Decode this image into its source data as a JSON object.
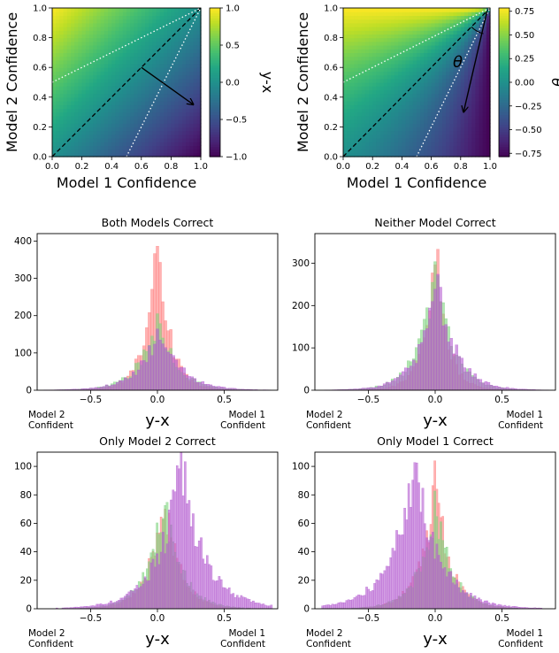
{
  "chart_data": [
    {
      "type": "heatmap",
      "colormap": "viridis",
      "function": "y-x",
      "xlabel": "Model 1 Confidence",
      "ylabel": "Model 2 Confidence",
      "xlim": [
        0,
        1
      ],
      "ylim": [
        0,
        1
      ],
      "xticks": [
        "0.0",
        "0.2",
        "0.4",
        "0.6",
        "0.8",
        "1.0"
      ],
      "yticks": [
        "0.0",
        "0.2",
        "0.4",
        "0.6",
        "0.8",
        "1.0"
      ],
      "colorbar": {
        "label": "y-x",
        "range": [
          -1,
          1
        ],
        "ticks": [
          "1.0",
          "0.5",
          "0.0",
          "−0.5",
          "−1.0"
        ]
      },
      "lines": [
        {
          "style": "dashed",
          "x": [
            0,
            1
          ],
          "y": [
            0,
            1
          ]
        },
        {
          "style": "dotted",
          "x": [
            0,
            1
          ],
          "y": [
            0.5,
            1
          ]
        },
        {
          "style": "dotted",
          "x": [
            0.5,
            1
          ],
          "y": [
            0,
            1
          ]
        }
      ],
      "arrow": {
        "from": [
          0.6,
          0.6
        ],
        "to": [
          0.95,
          0.35
        ]
      }
    },
    {
      "type": "heatmap",
      "colormap": "viridis",
      "function": "angle",
      "xlabel": "Model 1 Confidence",
      "ylabel": "Model 2 Confidence",
      "xlim": [
        0,
        1
      ],
      "ylim": [
        0,
        1
      ],
      "xticks": [
        "0.0",
        "0.2",
        "0.4",
        "0.6",
        "0.8",
        "1.0"
      ],
      "yticks": [
        "0.0",
        "0.2",
        "0.4",
        "0.6",
        "0.8",
        "1.0"
      ],
      "colorbar": {
        "label": "θ",
        "range": [
          -0.785,
          0.785
        ],
        "ticks": [
          "0.75",
          "0.50",
          "0.25",
          "0.00",
          "−0.25",
          "−0.50",
          "−0.75"
        ]
      },
      "lines": [
        {
          "style": "dashed",
          "x": [
            0,
            1
          ],
          "y": [
            0,
            1
          ]
        },
        {
          "style": "dotted",
          "x": [
            0,
            1
          ],
          "y": [
            0.5,
            1
          ]
        },
        {
          "style": "dotted",
          "x": [
            0.5,
            1
          ],
          "y": [
            0,
            1
          ]
        }
      ],
      "arrow": {
        "from": [
          0.98,
          0.98
        ],
        "to": [
          0.82,
          0.3
        ]
      },
      "annotation": "θ"
    },
    {
      "type": "histogram",
      "title": "Both Models Correct",
      "xlabel": "y-x",
      "xlim": [
        -0.9,
        0.9
      ],
      "ylim": [
        0,
        420
      ],
      "xticks": [
        "−0.5",
        "0.0",
        "0.5"
      ],
      "yticks": [
        "0",
        "100",
        "200",
        "300",
        "400"
      ],
      "side_labels": {
        "left": [
          "Model 2",
          "Confident"
        ],
        "right": [
          "Model 1",
          "Confident"
        ]
      },
      "bin_width": 0.02,
      "series": [
        {
          "color": "#ff7f7f",
          "peak_x": 0.0,
          "peak_y": 400,
          "spread": 0.15
        },
        {
          "color": "#7fd37f",
          "peak_x": 0.0,
          "peak_y": 195,
          "spread": 0.22
        },
        {
          "color": "#b45cd0",
          "peak_x": 0.02,
          "peak_y": 170,
          "spread": 0.24
        }
      ]
    },
    {
      "type": "histogram",
      "title": "Neither Model Correct",
      "xlabel": "y-x",
      "xlim": [
        -0.9,
        0.9
      ],
      "ylim": [
        0,
        370
      ],
      "xticks": [
        "−0.5",
        "0.0",
        "0.5"
      ],
      "yticks": [
        "0",
        "100",
        "200",
        "300"
      ],
      "side_labels": {
        "left": [
          "Model 2",
          "Confident"
        ],
        "right": [
          "Model 1",
          "Confident"
        ]
      },
      "bin_width": 0.02,
      "series": [
        {
          "color": "#ff7f7f",
          "peak_x": 0.0,
          "peak_y": 345,
          "spread": 0.14
        },
        {
          "color": "#7fd37f",
          "peak_x": 0.0,
          "peak_y": 285,
          "spread": 0.2
        },
        {
          "color": "#b45cd0",
          "peak_x": 0.02,
          "peak_y": 250,
          "spread": 0.22
        }
      ]
    },
    {
      "type": "histogram",
      "title": "Only Model 2 Correct",
      "xlabel": "y-x",
      "xlim": [
        -0.9,
        0.9
      ],
      "ylim": [
        0,
        110
      ],
      "xticks": [
        "−0.5",
        "0.0",
        "0.5"
      ],
      "yticks": [
        "0",
        "20",
        "40",
        "60",
        "80",
        "100"
      ],
      "side_labels": {
        "left": [
          "Model 2",
          "Confident"
        ],
        "right": [
          "Model 1",
          "Confident"
        ]
      },
      "bin_width": 0.015,
      "series": [
        {
          "color": "#ff7f7f",
          "peak_x": 0.05,
          "peak_y": 80,
          "spread": 0.18
        },
        {
          "color": "#7fd37f",
          "peak_x": 0.05,
          "peak_y": 78,
          "spread": 0.2
        },
        {
          "color": "#b45cd0",
          "peak_x": 0.18,
          "peak_y": 100,
          "spread": 0.28
        }
      ]
    },
    {
      "type": "histogram",
      "title": "Only Model 1 Correct",
      "xlabel": "y-x",
      "xlim": [
        -0.9,
        0.9
      ],
      "ylim": [
        0,
        110
      ],
      "xticks": [
        "−0.5",
        "0.0",
        "0.5"
      ],
      "yticks": [
        "0",
        "20",
        "40",
        "60",
        "80",
        "100"
      ],
      "side_labels": {
        "left": [
          "Model 2",
          "Confident"
        ],
        "right": [
          "Model 1",
          "Confident"
        ]
      },
      "bin_width": 0.015,
      "series": [
        {
          "color": "#ff7f7f",
          "peak_x": 0.0,
          "peak_y": 90,
          "spread": 0.18
        },
        {
          "color": "#7fd37f",
          "peak_x": 0.0,
          "peak_y": 72,
          "spread": 0.2
        },
        {
          "color": "#b45cd0",
          "peak_x": -0.15,
          "peak_y": 100,
          "spread": 0.28
        }
      ]
    }
  ]
}
